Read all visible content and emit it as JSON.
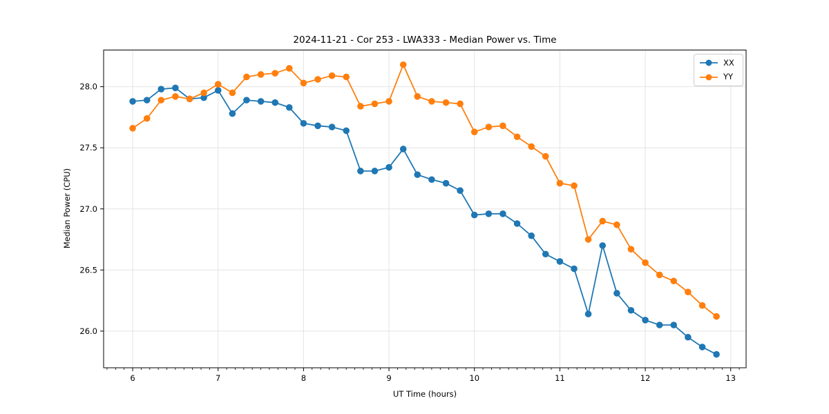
{
  "chart_data": {
    "type": "line",
    "title": "2024-11-21 - Cor 253 - LWA333 - Median Power vs. Time",
    "xlabel": "UT Time (hours)",
    "ylabel": "Median Power (CPU)",
    "xlim": [
      5.66,
      13.18
    ],
    "ylim": [
      25.7,
      28.3
    ],
    "xticks": [
      6,
      7,
      8,
      9,
      10,
      11,
      12,
      13
    ],
    "xtick_labels": [
      "6",
      "7",
      "8",
      "9",
      "10",
      "11",
      "12",
      "13"
    ],
    "yticks": [
      26.0,
      26.5,
      27.0,
      27.5,
      28.0
    ],
    "ytick_labels": [
      "26.0",
      "26.5",
      "27.0",
      "27.5",
      "28.0"
    ],
    "x_minor_step": 0.1,
    "grid": true,
    "grid_color": "#e4e4e4",
    "frame_color": "#000000",
    "legend": {
      "position": "upper right",
      "entries": [
        "XX",
        "YY"
      ]
    },
    "x": [
      6.0,
      6.167,
      6.333,
      6.5,
      6.667,
      6.833,
      7.0,
      7.167,
      7.333,
      7.5,
      7.667,
      7.833,
      8.0,
      8.167,
      8.333,
      8.5,
      8.667,
      8.833,
      9.0,
      9.167,
      9.333,
      9.5,
      9.667,
      9.833,
      10.0,
      10.167,
      10.333,
      10.5,
      10.667,
      10.833,
      11.0,
      11.167,
      11.333,
      11.5,
      11.667,
      11.833,
      12.0,
      12.167,
      12.333,
      12.5,
      12.667,
      12.833
    ],
    "series": [
      {
        "name": "XX",
        "color": "#1f77b4",
        "marker": "circle",
        "values": [
          27.88,
          27.89,
          27.98,
          27.99,
          27.9,
          27.91,
          27.97,
          27.78,
          27.89,
          27.88,
          27.87,
          27.83,
          27.7,
          27.68,
          27.67,
          27.64,
          27.31,
          27.31,
          27.34,
          27.49,
          27.28,
          27.24,
          27.21,
          27.15,
          26.95,
          26.96,
          26.96,
          26.88,
          26.78,
          26.63,
          26.57,
          26.51,
          26.14,
          26.7,
          26.31,
          26.17,
          26.09,
          26.05,
          26.05,
          25.95,
          25.87,
          25.81
        ]
      },
      {
        "name": "YY",
        "color": "#ff7f0e",
        "marker": "circle",
        "values": [
          27.66,
          27.74,
          27.89,
          27.92,
          27.9,
          27.95,
          28.02,
          27.95,
          28.08,
          28.1,
          28.11,
          28.15,
          28.03,
          28.06,
          28.09,
          28.08,
          27.84,
          27.86,
          27.88,
          28.18,
          27.92,
          27.88,
          27.87,
          27.86,
          27.63,
          27.67,
          27.68,
          27.59,
          27.51,
          27.43,
          27.21,
          27.19,
          26.75,
          26.9,
          26.87,
          26.67,
          26.56,
          26.46,
          26.41,
          26.32,
          26.21,
          26.12
        ]
      }
    ]
  }
}
